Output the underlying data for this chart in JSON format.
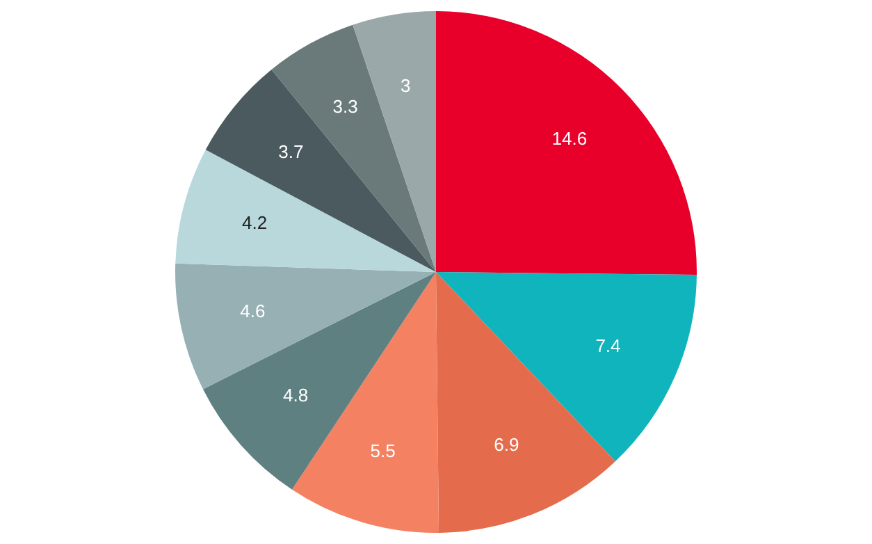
{
  "chart_data": {
    "type": "pie",
    "categories": [
      null,
      null,
      null,
      null,
      null,
      null,
      null,
      null,
      null,
      null
    ],
    "values": [
      14.6,
      7.4,
      6.9,
      5.5,
      4.8,
      4.6,
      4.2,
      3.7,
      3.3,
      3
    ],
    "colors": [
      "#e8002a",
      "#10b4bc",
      "#e46c4c",
      "#f58163",
      "#5f8080",
      "#96b0b4",
      "#b8d8dc",
      "#4a5a5e",
      "#6a7a7a",
      "#9aa8aa"
    ],
    "data_labels": true,
    "legend": false
  }
}
